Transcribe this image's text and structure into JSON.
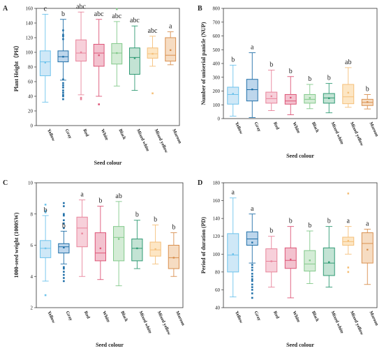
{
  "chart_data": [
    {
      "id": "A",
      "panel_label": "A",
      "type": "box",
      "xlabel": "Seed colour",
      "ylabel": "Plant Height（PH）",
      "ylim": [
        0,
        160
      ],
      "yticks": [
        0,
        20,
        40,
        60,
        80,
        100,
        120,
        140,
        160
      ],
      "categories": [
        "Yellow",
        "Gray",
        "Red",
        "White",
        "Black",
        "Mixed white",
        "Mixed yellow",
        "Maroon"
      ],
      "colors": [
        "#6ec3ec",
        "#1f6fa8",
        "#e8849b",
        "#dd5577",
        "#83c98b",
        "#2f9a73",
        "#f5c07a",
        "#d9904f"
      ],
      "fills": [
        "#cfe8f7",
        "#bdd6ec",
        "#f7d0da",
        "#f3c2cf",
        "#d4ecd6",
        "#c3e3d4",
        "#fde6c4",
        "#f6dcc2"
      ],
      "boxes": [
        {
          "whisker_low": 32,
          "q1": 68,
          "median": 87,
          "q3": 102,
          "whisker_high": 152,
          "mean": 86,
          "outliers": [],
          "letter": "c"
        },
        {
          "whisker_low": 62,
          "q1": 87,
          "median": 94,
          "q3": 102,
          "whisker_high": 145,
          "mean": 94,
          "outliers": [
            36,
            40,
            42,
            45,
            48,
            52,
            55,
            58,
            63,
            118,
            122,
            124,
            130
          ],
          "letter": "b"
        },
        {
          "whisker_low": 42,
          "q1": 88,
          "median": 99,
          "q3": 117,
          "whisker_high": 155,
          "mean": 100,
          "outliers": [
            36,
            38
          ],
          "letter": "abc"
        },
        {
          "whisker_low": 40,
          "q1": 81,
          "median": 99,
          "q3": 111,
          "whisker_high": 145,
          "mean": 96,
          "outliers": [
            29
          ],
          "letter": "abc"
        },
        {
          "whisker_low": 54,
          "q1": 84,
          "median": 99,
          "q3": 112,
          "whisker_high": 142,
          "mean": 99,
          "outliers": [
            159
          ],
          "letter": "abc"
        },
        {
          "whisker_low": 48,
          "q1": 70,
          "median": 93,
          "q3": 106,
          "whisker_high": 136,
          "mean": 92,
          "outliers": [],
          "letter": "abc"
        },
        {
          "whisker_low": 81,
          "q1": 92,
          "median": 98,
          "q3": 106,
          "whisker_high": 122,
          "mean": 98,
          "outliers": [
            44
          ],
          "letter": "abc"
        },
        {
          "whisker_low": 83,
          "q1": 88,
          "median": 96,
          "q3": 120,
          "whisker_high": 128,
          "mean": 103,
          "outliers": [],
          "letter": "a"
        }
      ]
    },
    {
      "id": "B",
      "panel_label": "B",
      "type": "box",
      "xlabel": "Seed colour",
      "ylabel": "Number of uniserial panicle (NUP)",
      "ylim": [
        0,
        800
      ],
      "yticks": [
        0,
        100,
        200,
        300,
        400,
        500,
        600,
        700,
        800
      ],
      "categories": [
        "Yellow",
        "Gray",
        "Red",
        "White",
        "Black",
        "Mixed white",
        "Mixed yellow",
        "Maroon"
      ],
      "colors": [
        "#6ec3ec",
        "#1f6fa8",
        "#e8849b",
        "#dd5577",
        "#83c98b",
        "#2f9a73",
        "#f5c07a",
        "#d9904f"
      ],
      "fills": [
        "#cfe8f7",
        "#bdd6ec",
        "#f7d0da",
        "#f3c2cf",
        "#d4ecd6",
        "#c3e3d4",
        "#fde6c4",
        "#f6dcc2"
      ],
      "boxes": [
        {
          "whisker_low": 18,
          "q1": 105,
          "median": 175,
          "q3": 228,
          "whisker_high": 388,
          "mean": 180,
          "outliers": [],
          "letter": "b"
        },
        {
          "whisker_low": 8,
          "q1": 128,
          "median": 210,
          "q3": 285,
          "whisker_high": 478,
          "mean": 212,
          "outliers": [],
          "letter": "a"
        },
        {
          "whisker_low": 58,
          "q1": 112,
          "median": 145,
          "q3": 192,
          "whisker_high": 352,
          "mean": 162,
          "outliers": [],
          "letter": "b"
        },
        {
          "whisker_low": 28,
          "q1": 105,
          "median": 128,
          "q3": 175,
          "whisker_high": 305,
          "mean": 152,
          "outliers": [],
          "letter": "b"
        },
        {
          "whisker_low": 72,
          "q1": 112,
          "median": 140,
          "q3": 175,
          "whisker_high": 248,
          "mean": 150,
          "outliers": [],
          "letter": "b"
        },
        {
          "whisker_low": 42,
          "q1": 112,
          "median": 150,
          "q3": 182,
          "whisker_high": 255,
          "mean": 148,
          "outliers": [],
          "letter": "b"
        },
        {
          "whisker_low": 82,
          "q1": 108,
          "median": 158,
          "q3": 248,
          "whisker_high": 370,
          "mean": 188,
          "outliers": [],
          "letter": "ab"
        },
        {
          "whisker_low": 70,
          "q1": 95,
          "median": 118,
          "q3": 140,
          "whisker_high": 175,
          "mean": 120,
          "outliers": [],
          "letter": "b"
        }
      ]
    },
    {
      "id": "C",
      "panel_label": "C",
      "type": "box",
      "xlabel": "Seed colour",
      "ylabel": "1000-seed weight (1000SW)",
      "ylim": [
        2,
        10
      ],
      "yticks": [
        2,
        4,
        6,
        8,
        10
      ],
      "categories": [
        "Yellow",
        "Gray",
        "Red",
        "White",
        "Black",
        "Mixed white",
        "Mixed yellow",
        "Maroon"
      ],
      "colors": [
        "#6ec3ec",
        "#1f6fa8",
        "#e8849b",
        "#dd5577",
        "#83c98b",
        "#2f9a73",
        "#f5c07a",
        "#d9904f"
      ],
      "fills": [
        "#cfe8f7",
        "#bdd6ec",
        "#f7d0da",
        "#f3c2cf",
        "#d4ecd6",
        "#c3e3d4",
        "#fde6c4",
        "#f6dcc2"
      ],
      "boxes": [
        {
          "whisker_low": 3.7,
          "q1": 5.2,
          "median": 5.8,
          "q3": 6.3,
          "whisker_high": 7.9,
          "mean": 5.8,
          "outliers": [
            2.8,
            8.1,
            8.2,
            8.6
          ],
          "letter": "b"
        },
        {
          "whisker_low": 4.8,
          "q1": 5.5,
          "median": 5.9,
          "q3": 6.1,
          "whisker_high": 6.9,
          "mean": 5.85,
          "outliers": [
            3.7,
            3.9,
            4.1,
            4.3,
            4.5,
            4.6,
            7.1,
            7.4,
            7.6,
            7.9,
            8.0,
            8.5,
            8.7
          ],
          "letter": "b"
        },
        {
          "whisker_low": 4.0,
          "q1": 5.9,
          "median": 7.1,
          "q3": 7.8,
          "whisker_high": 8.9,
          "mean": 6.75,
          "outliers": [],
          "letter": "a"
        },
        {
          "whisker_low": 3.8,
          "q1": 5.0,
          "median": 5.5,
          "q3": 6.8,
          "whisker_high": 8.5,
          "mean": 5.8,
          "outliers": [],
          "letter": "b"
        },
        {
          "whisker_low": 3.4,
          "q1": 5.0,
          "median": 6.5,
          "q3": 7.2,
          "whisker_high": 8.8,
          "mean": 6.4,
          "outliers": [],
          "letter": "ab"
        },
        {
          "whisker_low": 4.5,
          "q1": 5.0,
          "median": 5.8,
          "q3": 6.4,
          "whisker_high": 7.6,
          "mean": 5.8,
          "outliers": [],
          "letter": "b"
        },
        {
          "whisker_low": 4.8,
          "q1": 5.3,
          "median": 5.7,
          "q3": 6.2,
          "whisker_high": 7.3,
          "mean": 5.75,
          "outliers": [],
          "letter": "b"
        },
        {
          "whisker_low": 4.0,
          "q1": 4.5,
          "median": 5.2,
          "q3": 6.0,
          "whisker_high": 6.8,
          "mean": 5.2,
          "outliers": [],
          "letter": "b"
        }
      ]
    },
    {
      "id": "D",
      "panel_label": "D",
      "type": "box",
      "xlabel": "Seed colour",
      "ylabel": "Period of duration (PD)",
      "ylim": [
        40,
        180
      ],
      "yticks": [
        40,
        60,
        80,
        100,
        120,
        140,
        160,
        180
      ],
      "categories": [
        "Yellow",
        "Gray",
        "Red",
        "White",
        "Black",
        "Mixed white",
        "Mixed yellow",
        "Maroon"
      ],
      "colors": [
        "#6ec3ec",
        "#1f6fa8",
        "#e8849b",
        "#dd5577",
        "#83c98b",
        "#2f9a73",
        "#f5c07a",
        "#d9904f"
      ],
      "fills": [
        "#cfe8f7",
        "#bdd6ec",
        "#f7d0da",
        "#f3c2cf",
        "#d4ecd6",
        "#c3e3d4",
        "#fde6c4",
        "#f6dcc2"
      ],
      "boxes": [
        {
          "whisker_low": 52,
          "q1": 80,
          "median": 99,
          "q3": 123,
          "whisker_high": 163,
          "mean": 100,
          "outliers": [],
          "letter": "a"
        },
        {
          "whisker_low": 90,
          "q1": 110,
          "median": 117,
          "q3": 125,
          "whisker_high": 145,
          "mean": 113,
          "outliers": [
            51,
            56,
            60,
            63,
            66,
            70,
            72,
            75,
            78,
            82,
            85,
            88
          ],
          "letter": "a"
        },
        {
          "whisker_low": 63,
          "q1": 80,
          "median": 92,
          "q3": 106,
          "whisker_high": 120,
          "mean": 92,
          "outliers": [],
          "letter": "b"
        },
        {
          "whisker_low": 51,
          "q1": 84,
          "median": 93,
          "q3": 107,
          "whisker_high": 131,
          "mean": 94,
          "outliers": [],
          "letter": "b"
        },
        {
          "whisker_low": 67,
          "q1": 81,
          "median": 89,
          "q3": 104,
          "whisker_high": 126,
          "mean": 93,
          "outliers": [],
          "letter": "b"
        },
        {
          "whisker_low": 63,
          "q1": 76,
          "median": 90,
          "q3": 107,
          "whisker_high": 131,
          "mean": 91,
          "outliers": [],
          "letter": "b"
        },
        {
          "whisker_low": 100,
          "q1": 110,
          "median": 114,
          "q3": 119,
          "whisker_high": 131,
          "mean": 115,
          "outliers": [
            80,
            85,
            168
          ],
          "letter": "a"
        },
        {
          "whisker_low": 66,
          "q1": 90,
          "median": 112,
          "q3": 124,
          "whisker_high": 128,
          "mean": 105,
          "outliers": [],
          "letter": "a"
        }
      ]
    }
  ]
}
